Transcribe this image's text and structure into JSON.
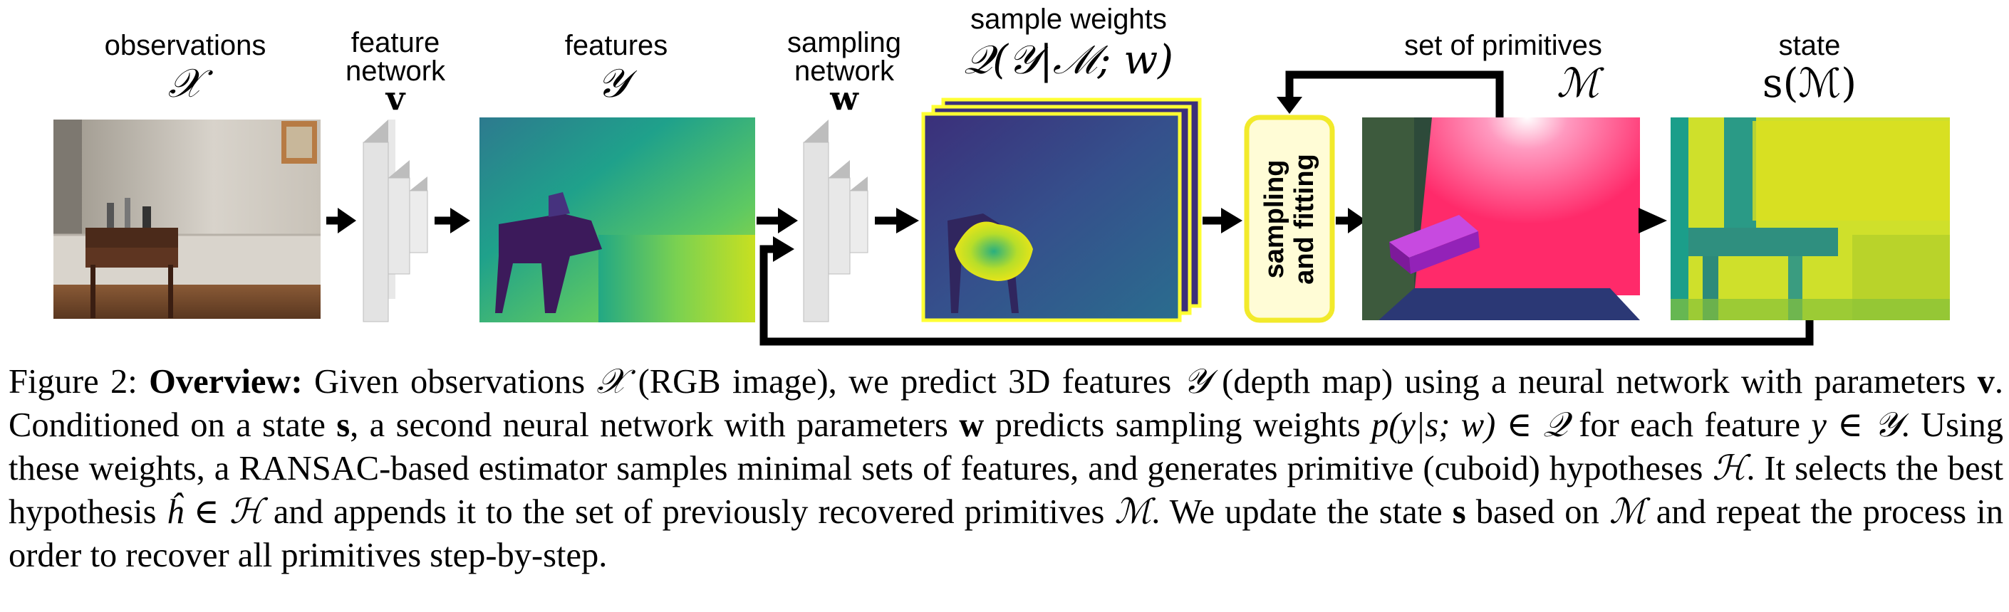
{
  "figure": {
    "observations": {
      "label": "observations",
      "symbol": "𝒳"
    },
    "feature_network": {
      "label_line1": "feature",
      "label_line2": "network",
      "symbol": "v"
    },
    "features": {
      "label": "features",
      "symbol": "𝒴"
    },
    "sampling_network": {
      "label_line1": "sampling",
      "label_line2": "network",
      "symbol": "w"
    },
    "sample_weights": {
      "label": "sample weights",
      "symbol": "𝒬(𝒴|ℳ; w)"
    },
    "sampling_fitting": {
      "line1": "sampling",
      "line2": "and fitting"
    },
    "primitives": {
      "label": "set of primitives",
      "symbol": "ℳ"
    },
    "state": {
      "label": "state",
      "symbol": "s(ℳ)"
    }
  },
  "caption": {
    "fig_label": "Figure 2:",
    "title": "Overview:",
    "text1": "Given observations",
    "sym_X": "𝒳",
    "text2": "(RGB image), we predict 3D features",
    "sym_Y": "𝒴",
    "text3": "(depth map) using a neural network with parameters",
    "sym_v": "v",
    "text4": ". Conditioned on a state",
    "sym_s": "s",
    "text5": ", a second neural network with parameters",
    "sym_w": "w",
    "text6": "predicts sampling weights",
    "sym_p": "p(y|s; w) ∈ 𝒬",
    "text7": "for each feature",
    "sym_y": "y ∈ 𝒴",
    "text8": ". Using these weights, a RANSAC-based estimator samples minimal sets of features, and generates primitive (cuboid) hypotheses",
    "sym_H": "ℋ",
    "text9": ". It selects the best hypothesis",
    "sym_h": "ĥ ∈ ℋ",
    "text10": "and appends it to the set of previously recovered primitives",
    "sym_M1": "ℳ",
    "text11": ". We update the state",
    "sym_s2": "s",
    "text12": "based on",
    "sym_M2": "ℳ",
    "text13": "and repeat the process in order to recover all primitives step-by-step."
  }
}
